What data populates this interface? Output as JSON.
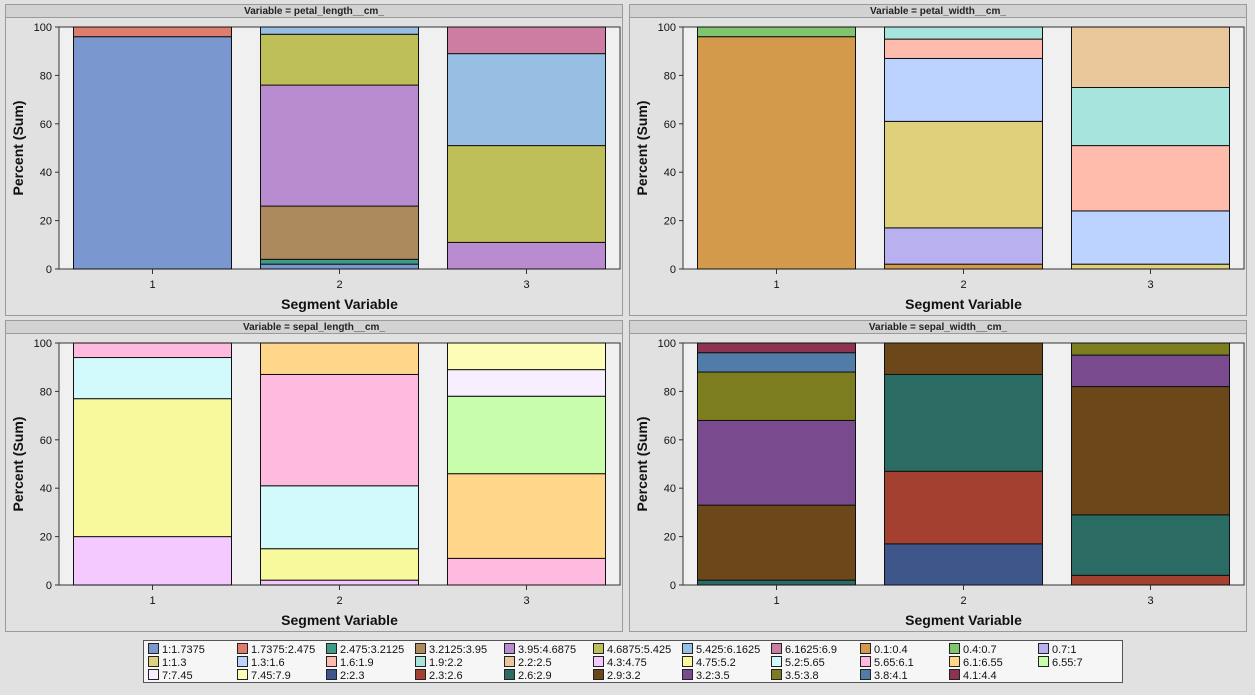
{
  "legend": [
    {
      "label": "1:1.7375",
      "color": "#7b97cf"
    },
    {
      "label": "1.7375:2.475",
      "color": "#dc7d6e"
    },
    {
      "label": "2.475:3.2125",
      "color": "#3f9a86"
    },
    {
      "label": "3.2125:3.95",
      "color": "#ad8a5e"
    },
    {
      "label": "3.95:4.6875",
      "color": "#b88ccf"
    },
    {
      "label": "4.6875:5.425",
      "color": "#bfbf5a"
    },
    {
      "label": "5.425:6.1625",
      "color": "#97bfe3"
    },
    {
      "label": "6.1625:6.9",
      "color": "#cd7ca2"
    },
    {
      "label": "0.1:0.4",
      "color": "#d39a4c"
    },
    {
      "label": "0.4:0.7",
      "color": "#80c470"
    },
    {
      "label": "0.7:1",
      "color": "#b9b0ef"
    },
    {
      "label": "1:1.3",
      "color": "#e0d07c"
    },
    {
      "label": "1.3:1.6",
      "color": "#bcd3ff"
    },
    {
      "label": "1.6:1.9",
      "color": "#ffbcad"
    },
    {
      "label": "1.9:2.2",
      "color": "#a6e4dd"
    },
    {
      "label": "2.2:2.5",
      "color": "#e9c79b"
    },
    {
      "label": "4.3:4.75",
      "color": "#f4c9ff"
    },
    {
      "label": "4.75:5.2",
      "color": "#f8f89c"
    },
    {
      "label": "5.2:5.65",
      "color": "#d2fafc"
    },
    {
      "label": "5.65:6.1",
      "color": "#ffbadf"
    },
    {
      "label": "6.1:6.55",
      "color": "#ffd68a"
    },
    {
      "label": "6.55:7",
      "color": "#c7fdab"
    },
    {
      "label": "7:7.45",
      "color": "#f7eeff"
    },
    {
      "label": "7.45:7.9",
      "color": "#fdfdb8"
    },
    {
      "label": "2:2.3",
      "color": "#3f568a"
    },
    {
      "label": "2.3:2.6",
      "color": "#a34030"
    },
    {
      "label": "2.6:2.9",
      "color": "#2a6b64"
    },
    {
      "label": "2.9:3.2",
      "color": "#6b471a"
    },
    {
      "label": "3.2:3.5",
      "color": "#7a4a8f"
    },
    {
      "label": "3.5:3.8",
      "color": "#7b7d1e"
    },
    {
      "label": "3.8:4.1",
      "color": "#527ca8"
    },
    {
      "label": "4.1:4.4",
      "color": "#8d3352"
    }
  ],
  "chart_data": [
    {
      "type": "bar",
      "stacked": true,
      "title": "Variable = petal_length__cm_",
      "xlabel": "Segment Variable",
      "ylabel": "Percent (Sum)",
      "categories": [
        "1",
        "2",
        "3"
      ],
      "ylim": [
        0,
        100
      ],
      "yticks": [
        0,
        20,
        40,
        60,
        80,
        100
      ],
      "series": [
        {
          "name": "1:1.7375",
          "values": [
            96,
            2,
            0
          ]
        },
        {
          "name": "1.7375:2.475",
          "values": [
            4,
            0,
            0
          ]
        },
        {
          "name": "2.475:3.2125",
          "values": [
            0,
            2,
            0
          ]
        },
        {
          "name": "3.2125:3.95",
          "values": [
            0,
            22,
            0
          ]
        },
        {
          "name": "3.95:4.6875",
          "values": [
            0,
            50,
            11
          ]
        },
        {
          "name": "4.6875:5.425",
          "values": [
            0,
            21,
            40
          ]
        },
        {
          "name": "5.425:6.1625",
          "values": [
            0,
            3,
            38
          ]
        },
        {
          "name": "6.1625:6.9",
          "values": [
            0,
            0,
            11
          ]
        }
      ]
    },
    {
      "type": "bar",
      "stacked": true,
      "title": "Variable = petal_width__cm_",
      "xlabel": "Segment Variable",
      "ylabel": "Percent (Sum)",
      "categories": [
        "1",
        "2",
        "3"
      ],
      "ylim": [
        0,
        100
      ],
      "yticks": [
        0,
        20,
        40,
        60,
        80,
        100
      ],
      "series": [
        {
          "name": "0.1:0.4",
          "values": [
            96,
            2,
            0
          ]
        },
        {
          "name": "0.4:0.7",
          "values": [
            4,
            0,
            0
          ]
        },
        {
          "name": "0.7:1",
          "values": [
            0,
            15,
            0
          ]
        },
        {
          "name": "1:1.3",
          "values": [
            0,
            44,
            2
          ]
        },
        {
          "name": "1.3:1.6",
          "values": [
            0,
            26,
            22
          ]
        },
        {
          "name": "1.6:1.9",
          "values": [
            0,
            8,
            27
          ]
        },
        {
          "name": "1.9:2.2",
          "values": [
            0,
            5,
            24
          ]
        },
        {
          "name": "2.2:2.5",
          "values": [
            0,
            0,
            25
          ]
        }
      ]
    },
    {
      "type": "bar",
      "stacked": true,
      "title": "Variable = sepal_length__cm_",
      "xlabel": "Segment Variable",
      "ylabel": "Percent (Sum)",
      "categories": [
        "1",
        "2",
        "3"
      ],
      "ylim": [
        0,
        100
      ],
      "yticks": [
        0,
        20,
        40,
        60,
        80,
        100
      ],
      "series": [
        {
          "name": "4.3:4.75",
          "values": [
            20,
            2,
            0
          ]
        },
        {
          "name": "4.75:5.2",
          "values": [
            57,
            13,
            0
          ]
        },
        {
          "name": "5.2:5.65",
          "values": [
            17,
            26,
            0
          ]
        },
        {
          "name": "5.65:6.1",
          "values": [
            6,
            46,
            11
          ]
        },
        {
          "name": "6.1:6.55",
          "values": [
            0,
            13,
            35
          ]
        },
        {
          "name": "6.55:7",
          "values": [
            0,
            0,
            32
          ]
        },
        {
          "name": "7:7.45",
          "values": [
            0,
            0,
            11
          ]
        },
        {
          "name": "7.45:7.9",
          "values": [
            0,
            0,
            11
          ]
        }
      ]
    },
    {
      "type": "bar",
      "stacked": true,
      "title": "Variable = sepal_width__cm_",
      "xlabel": "Segment Variable",
      "ylabel": "Percent (Sum)",
      "categories": [
        "1",
        "2",
        "3"
      ],
      "ylim": [
        0,
        100
      ],
      "yticks": [
        0,
        20,
        40,
        60,
        80,
        100
      ],
      "series": [
        {
          "name": "2:2.3",
          "values": [
            0,
            17,
            0
          ]
        },
        {
          "name": "2.3:2.6",
          "values": [
            0,
            30,
            4
          ]
        },
        {
          "name": "2.6:2.9",
          "values": [
            2,
            40,
            25
          ]
        },
        {
          "name": "2.9:3.2",
          "values": [
            31,
            13,
            53
          ]
        },
        {
          "name": "3.2:3.5",
          "values": [
            35,
            0,
            13
          ]
        },
        {
          "name": "3.5:3.8",
          "values": [
            20,
            0,
            5
          ]
        },
        {
          "name": "3.8:4.1",
          "values": [
            8,
            0,
            0
          ]
        },
        {
          "name": "4.1:4.4",
          "values": [
            4,
            0,
            0
          ]
        }
      ]
    }
  ]
}
